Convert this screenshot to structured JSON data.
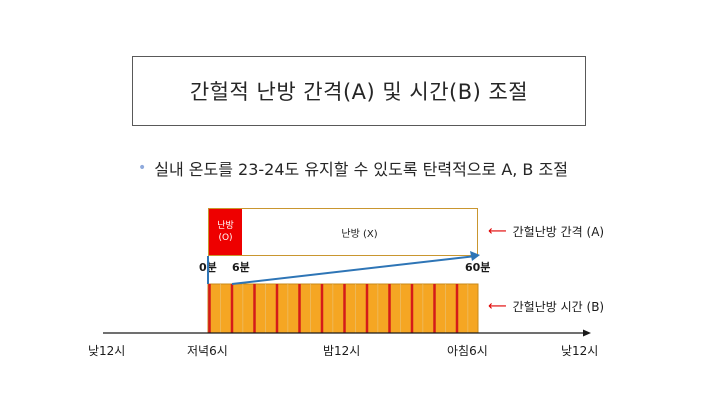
{
  "title": "간헐적 난방 간격(A) 및 시간(B) 조절",
  "bullet": "실내 온도를 23-24도 유지할 수 있도록 탄력적으로 A, B 조절",
  "interval_bar": {
    "on_label_line1": "난방",
    "on_label_line2": "(O)",
    "off_label": "난방 (X)",
    "on_minutes": 6,
    "total_minutes": 60,
    "side_label": "간헐난방 간격 (A)"
  },
  "minute_ticks": [
    "0분",
    "6분",
    "60분"
  ],
  "duration_bar": {
    "cycles": 12,
    "side_label": "간헐난방 시간 (B)"
  },
  "timeline": [
    "낮12시",
    "저녁6시",
    "밤12시",
    "아침6시",
    "낮12시"
  ],
  "colors": {
    "on": "#ee0000",
    "bar_fill": "#f5a623",
    "bar_stripe": "#d41a1a",
    "zoom_line": "#2e75b6",
    "side_arrow": "#e00000",
    "axis": "#1a1a1a"
  }
}
